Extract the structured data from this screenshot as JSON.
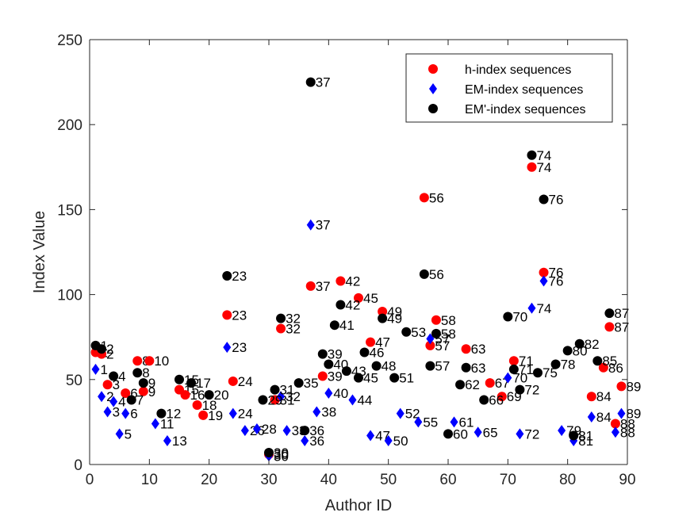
{
  "chart_data": {
    "type": "scatter",
    "title": "",
    "xlabel": "Author ID",
    "ylabel": "Index Value",
    "xlim": [
      0,
      90
    ],
    "ylim": [
      0,
      250
    ],
    "xticks": [
      0,
      10,
      20,
      30,
      40,
      50,
      60,
      70,
      80,
      90
    ],
    "yticks": [
      0,
      50,
      100,
      150,
      200,
      250
    ],
    "grid": false,
    "legend_position": "top-right",
    "point_labels": "author id printed next to each marker",
    "series": [
      {
        "name": "h-index sequences",
        "color": "#ff0000",
        "marker": "circle",
        "points": [
          [
            1,
            66
          ],
          [
            2,
            65
          ],
          [
            3,
            47
          ],
          [
            6,
            42
          ],
          [
            8,
            61
          ],
          [
            9,
            43
          ],
          [
            10,
            61
          ],
          [
            15,
            44
          ],
          [
            16,
            41
          ],
          [
            18,
            35
          ],
          [
            19,
            29
          ],
          [
            23,
            88
          ],
          [
            24,
            49
          ],
          [
            30,
            6
          ],
          [
            31,
            38
          ],
          [
            32,
            80
          ],
          [
            37,
            105
          ],
          [
            39,
            52
          ],
          [
            42,
            108
          ],
          [
            45,
            98
          ],
          [
            47,
            72
          ],
          [
            49,
            90
          ],
          [
            56,
            157
          ],
          [
            57,
            70
          ],
          [
            58,
            85
          ],
          [
            63,
            68
          ],
          [
            67,
            48
          ],
          [
            69,
            40
          ],
          [
            71,
            61
          ],
          [
            74,
            175
          ],
          [
            76,
            113
          ],
          [
            84,
            40
          ],
          [
            86,
            57
          ],
          [
            87,
            81
          ],
          [
            88,
            24
          ],
          [
            89,
            46
          ]
        ]
      },
      {
        "name": "EM-index sequences",
        "color": "#0000ff",
        "marker": "diamond",
        "points": [
          [
            1,
            56
          ],
          [
            2,
            40
          ],
          [
            3,
            31
          ],
          [
            4,
            37
          ],
          [
            5,
            18
          ],
          [
            6,
            30
          ],
          [
            11,
            24
          ],
          [
            13,
            14
          ],
          [
            23,
            69
          ],
          [
            24,
            30
          ],
          [
            26,
            20
          ],
          [
            28,
            21
          ],
          [
            30,
            5
          ],
          [
            32,
            40
          ],
          [
            33,
            20
          ],
          [
            36,
            14
          ],
          [
            37,
            141
          ],
          [
            38,
            31
          ],
          [
            40,
            42
          ],
          [
            44,
            38
          ],
          [
            47,
            17
          ],
          [
            50,
            14
          ],
          [
            52,
            30
          ],
          [
            55,
            25
          ],
          [
            57,
            74
          ],
          [
            61,
            25
          ],
          [
            65,
            19
          ],
          [
            70,
            51
          ],
          [
            72,
            18
          ],
          [
            74,
            92
          ],
          [
            76,
            108
          ],
          [
            79,
            20
          ],
          [
            81,
            14
          ],
          [
            84,
            28
          ],
          [
            88,
            19
          ],
          [
            89,
            30
          ]
        ]
      },
      {
        "name": "EM'-index sequences",
        "color": "#000000",
        "marker": "circle",
        "points": [
          [
            1,
            70
          ],
          [
            2,
            68
          ],
          [
            4,
            52
          ],
          [
            7,
            38
          ],
          [
            8,
            54
          ],
          [
            9,
            48
          ],
          [
            12,
            30
          ],
          [
            15,
            50
          ],
          [
            17,
            48
          ],
          [
            20,
            41
          ],
          [
            23,
            111
          ],
          [
            29,
            38
          ],
          [
            30,
            7
          ],
          [
            31,
            44
          ],
          [
            32,
            86
          ],
          [
            35,
            48
          ],
          [
            36,
            20
          ],
          [
            37,
            225
          ],
          [
            39,
            65
          ],
          [
            40,
            59
          ],
          [
            41,
            82
          ],
          [
            42,
            94
          ],
          [
            43,
            55
          ],
          [
            45,
            51
          ],
          [
            46,
            66
          ],
          [
            48,
            58
          ],
          [
            49,
            86
          ],
          [
            51,
            51
          ],
          [
            53,
            78
          ],
          [
            56,
            112
          ],
          [
            57,
            58
          ],
          [
            58,
            77
          ],
          [
            60,
            18
          ],
          [
            62,
            47
          ],
          [
            63,
            57
          ],
          [
            66,
            38
          ],
          [
            70,
            87
          ],
          [
            71,
            56
          ],
          [
            72,
            44
          ],
          [
            74,
            182
          ],
          [
            75,
            54
          ],
          [
            76,
            156
          ],
          [
            78,
            59
          ],
          [
            80,
            67
          ],
          [
            81,
            17
          ],
          [
            82,
            71
          ],
          [
            85,
            61
          ],
          [
            87,
            89
          ]
        ]
      }
    ]
  }
}
